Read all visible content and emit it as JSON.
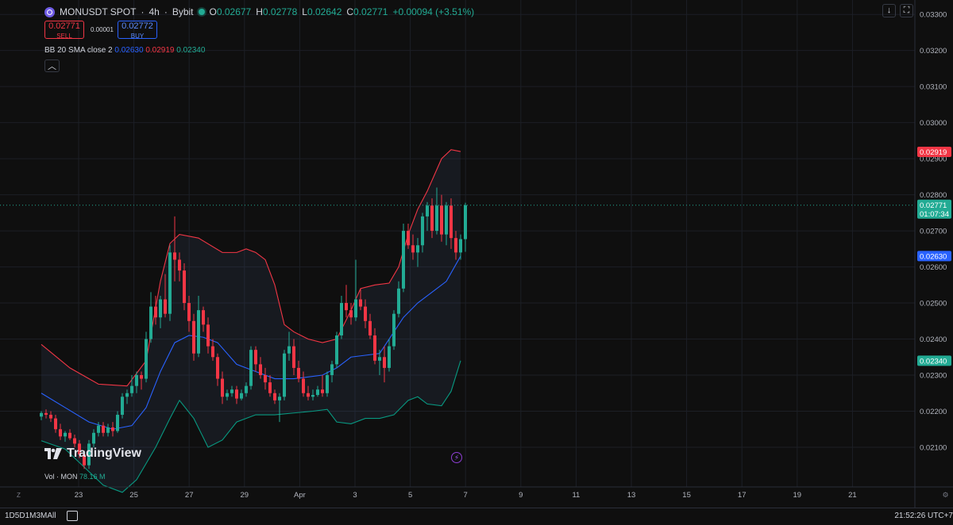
{
  "header": {
    "symbol": "MONUSDT SPOT",
    "timeframe": "4h",
    "exchange": "Bybit",
    "open_label": "O",
    "open": "0.02677",
    "high_label": "H",
    "high": "0.02778",
    "low_label": "L",
    "low": "0.02642",
    "close_label": "C",
    "close": "0.02771",
    "change": "+0.00094 (+3.51%)"
  },
  "trade": {
    "sell_price": "0.02771",
    "sell_label": "SELL",
    "spread": "0.00001",
    "buy_price": "0.02772",
    "buy_label": "BUY"
  },
  "indicator": {
    "name": "BB 20 SMA close 2",
    "basis": "0.02630",
    "upper": "0.02919",
    "lower": "0.02340"
  },
  "volume": {
    "label": "Vol · MON",
    "value": "78.16 M"
  },
  "branding": {
    "logo_text": "TradingView"
  },
  "bottom_bar": {
    "timeframes": "1D5D1M3MAll",
    "clock": "21:52:26 UTC+7",
    "zoom_glyph": "Z"
  },
  "colors": {
    "up": "#22ab94",
    "down": "#f23645",
    "basis": "#2962ff",
    "upper": "#f23645",
    "lower": "#089981"
  },
  "chart_data": {
    "type": "candlestick",
    "title": "",
    "xlabel": "",
    "ylabel": "",
    "ylim": [
      0.0199,
      0.0334
    ],
    "y_ticks": [
      "0.03300",
      "0.03200",
      "0.03100",
      "0.03000",
      "0.02900",
      "0.02800",
      "0.02700",
      "0.02600",
      "0.02500",
      "0.02400",
      "0.02300",
      "0.02200",
      "0.02100"
    ],
    "x_ticks": [
      "23",
      "25",
      "27",
      "29",
      "Apr",
      "3",
      "5",
      "7",
      "9",
      "11",
      "13",
      "15",
      "17",
      "19",
      "21"
    ],
    "grid": true,
    "price_labels": [
      {
        "value": 0.02919,
        "text": "0.02919",
        "color": "#f23645"
      },
      {
        "value": 0.02771,
        "text": "0.02771",
        "sub": "01:07:34",
        "color": "#22ab94"
      },
      {
        "value": 0.0263,
        "text": "0.02630",
        "color": "#2962ff"
      },
      {
        "value": 0.0234,
        "text": "0.02340",
        "color": "#22ab94"
      }
    ],
    "last_price": 0.02771,
    "candles": [
      [
        0.02185,
        0.022,
        0.02175,
        0.02195
      ],
      [
        0.02195,
        0.02205,
        0.0218,
        0.0219
      ],
      [
        0.0219,
        0.022,
        0.0217,
        0.0218
      ],
      [
        0.0218,
        0.0219,
        0.0214,
        0.0215
      ],
      [
        0.0215,
        0.02165,
        0.0212,
        0.0213
      ],
      [
        0.0213,
        0.02145,
        0.02115,
        0.0214
      ],
      [
        0.0214,
        0.0215,
        0.0212,
        0.02125
      ],
      [
        0.02125,
        0.02135,
        0.021,
        0.0211
      ],
      [
        0.0211,
        0.0212,
        0.0207,
        0.0208
      ],
      [
        0.0208,
        0.0209,
        0.0204,
        0.0205
      ],
      [
        0.0205,
        0.0212,
        0.0204,
        0.0211
      ],
      [
        0.0211,
        0.0215,
        0.021,
        0.0214
      ],
      [
        0.0214,
        0.0217,
        0.0213,
        0.0216
      ],
      [
        0.0216,
        0.0217,
        0.0213,
        0.0214
      ],
      [
        0.0214,
        0.02165,
        0.0213,
        0.02155
      ],
      [
        0.02155,
        0.0217,
        0.0213,
        0.02145
      ],
      [
        0.02145,
        0.022,
        0.0214,
        0.0219
      ],
      [
        0.0219,
        0.0225,
        0.0218,
        0.0224
      ],
      [
        0.0224,
        0.0226,
        0.0222,
        0.0225
      ],
      [
        0.0225,
        0.023,
        0.0224,
        0.0227
      ],
      [
        0.0227,
        0.0231,
        0.0225,
        0.023
      ],
      [
        0.023,
        0.0231,
        0.0226,
        0.0229
      ],
      [
        0.0229,
        0.0242,
        0.0228,
        0.024
      ],
      [
        0.024,
        0.0253,
        0.0239,
        0.0249
      ],
      [
        0.0249,
        0.0252,
        0.0244,
        0.0246
      ],
      [
        0.0246,
        0.0252,
        0.0243,
        0.0251
      ],
      [
        0.0251,
        0.0258,
        0.0246,
        0.0247
      ],
      [
        0.0247,
        0.0266,
        0.0245,
        0.0264
      ],
      [
        0.0264,
        0.0274,
        0.0256,
        0.0262
      ],
      [
        0.0262,
        0.0264,
        0.0256,
        0.0259
      ],
      [
        0.0259,
        0.0261,
        0.0248,
        0.025
      ],
      [
        0.025,
        0.0252,
        0.0242,
        0.0245
      ],
      [
        0.0245,
        0.0247,
        0.0234,
        0.0236
      ],
      [
        0.0236,
        0.0252,
        0.0235,
        0.0248
      ],
      [
        0.0248,
        0.0249,
        0.0242,
        0.0244
      ],
      [
        0.0244,
        0.0246,
        0.0236,
        0.0238
      ],
      [
        0.0238,
        0.024,
        0.0234,
        0.0235
      ],
      [
        0.0235,
        0.0236,
        0.0227,
        0.0229
      ],
      [
        0.0229,
        0.0231,
        0.0222,
        0.0224
      ],
      [
        0.0224,
        0.0226,
        0.0223,
        0.0225
      ],
      [
        0.0225,
        0.0227,
        0.0224,
        0.0226
      ],
      [
        0.0226,
        0.0227,
        0.0222,
        0.02235
      ],
      [
        0.02235,
        0.0226,
        0.0223,
        0.0225
      ],
      [
        0.0225,
        0.0228,
        0.0224,
        0.0227
      ],
      [
        0.0227,
        0.0238,
        0.0226,
        0.0237
      ],
      [
        0.0237,
        0.0238,
        0.0231,
        0.0233
      ],
      [
        0.0233,
        0.0235,
        0.0229,
        0.023
      ],
      [
        0.023,
        0.0232,
        0.0226,
        0.0228
      ],
      [
        0.0228,
        0.023,
        0.0224,
        0.0225
      ],
      [
        0.0225,
        0.0226,
        0.0222,
        0.0223
      ],
      [
        0.0223,
        0.0225,
        0.0217,
        0.0224
      ],
      [
        0.0224,
        0.0237,
        0.0223,
        0.0236
      ],
      [
        0.0236,
        0.0242,
        0.0234,
        0.0238
      ],
      [
        0.0238,
        0.024,
        0.023,
        0.0232
      ],
      [
        0.0232,
        0.0234,
        0.0228,
        0.0229
      ],
      [
        0.0229,
        0.0231,
        0.0224,
        0.0225
      ],
      [
        0.0225,
        0.0227,
        0.0223,
        0.0224
      ],
      [
        0.0224,
        0.0226,
        0.0223,
        0.02245
      ],
      [
        0.02245,
        0.0227,
        0.0224,
        0.0226
      ],
      [
        0.0226,
        0.023,
        0.0224,
        0.0225
      ],
      [
        0.0225,
        0.0231,
        0.0224,
        0.023
      ],
      [
        0.023,
        0.0234,
        0.0228,
        0.0233
      ],
      [
        0.0233,
        0.0242,
        0.0232,
        0.0241
      ],
      [
        0.0241,
        0.0252,
        0.024,
        0.025
      ],
      [
        0.025,
        0.0255,
        0.0246,
        0.0248
      ],
      [
        0.0248,
        0.025,
        0.0244,
        0.0246
      ],
      [
        0.0246,
        0.0262,
        0.0245,
        0.0251
      ],
      [
        0.0251,
        0.0254,
        0.0248,
        0.0249
      ],
      [
        0.0249,
        0.0251,
        0.0243,
        0.0245
      ],
      [
        0.0245,
        0.0247,
        0.024,
        0.0241
      ],
      [
        0.0241,
        0.0243,
        0.0233,
        0.0234
      ],
      [
        0.0234,
        0.0237,
        0.023,
        0.0235
      ],
      [
        0.0235,
        0.0238,
        0.0228,
        0.0232
      ],
      [
        0.0232,
        0.024,
        0.0231,
        0.0238
      ],
      [
        0.0238,
        0.0248,
        0.0237,
        0.0247
      ],
      [
        0.0247,
        0.0256,
        0.0246,
        0.0254
      ],
      [
        0.0254,
        0.0272,
        0.0253,
        0.027
      ],
      [
        0.027,
        0.0272,
        0.0265,
        0.0266
      ],
      [
        0.0266,
        0.0269,
        0.0262,
        0.0264
      ],
      [
        0.0264,
        0.0268,
        0.026,
        0.0266
      ],
      [
        0.0266,
        0.0275,
        0.0264,
        0.0274
      ],
      [
        0.0274,
        0.0278,
        0.027,
        0.0277
      ],
      [
        0.0277,
        0.0279,
        0.0268,
        0.027
      ],
      [
        0.027,
        0.0282,
        0.0269,
        0.0277
      ],
      [
        0.0277,
        0.028,
        0.0267,
        0.0269
      ],
      [
        0.0269,
        0.0278,
        0.0266,
        0.0277
      ],
      [
        0.0277,
        0.0279,
        0.0265,
        0.0268
      ],
      [
        0.0268,
        0.027,
        0.0262,
        0.0264
      ],
      [
        0.0264,
        0.0269,
        0.0262,
        0.02677
      ],
      [
        0.02677,
        0.02778,
        0.02642,
        0.02771
      ]
    ],
    "bb_upper": [
      [
        0,
        0.02385
      ],
      [
        6,
        0.0232
      ],
      [
        12,
        0.02275
      ],
      [
        18,
        0.0227
      ],
      [
        22,
        0.0234
      ],
      [
        25,
        0.0256
      ],
      [
        27,
        0.02665
      ],
      [
        29,
        0.0269
      ],
      [
        33,
        0.0268
      ],
      [
        38,
        0.0264
      ],
      [
        41,
        0.0264
      ],
      [
        43,
        0.0265
      ],
      [
        45,
        0.0264
      ],
      [
        47,
        0.0262
      ],
      [
        49,
        0.0255
      ],
      [
        51,
        0.0244
      ],
      [
        53,
        0.0242
      ],
      [
        56,
        0.024
      ],
      [
        59,
        0.0239
      ],
      [
        62,
        0.024
      ],
      [
        65,
        0.0248
      ],
      [
        67,
        0.0254
      ],
      [
        70,
        0.0255
      ],
      [
        73,
        0.02555
      ],
      [
        75,
        0.026
      ],
      [
        77,
        0.0269
      ],
      [
        79,
        0.0276
      ],
      [
        81,
        0.0281
      ],
      [
        84,
        0.029
      ],
      [
        86,
        0.02925
      ],
      [
        88,
        0.0292
      ]
    ],
    "bb_basis": [
      [
        0,
        0.0225
      ],
      [
        5,
        0.0221
      ],
      [
        10,
        0.0217
      ],
      [
        15,
        0.0215
      ],
      [
        19,
        0.0216
      ],
      [
        22,
        0.0221
      ],
      [
        25,
        0.0231
      ],
      [
        28,
        0.0239
      ],
      [
        31,
        0.0241
      ],
      [
        34,
        0.02405
      ],
      [
        37,
        0.0239
      ],
      [
        41,
        0.0233
      ],
      [
        45,
        0.0231
      ],
      [
        49,
        0.0229
      ],
      [
        53,
        0.0229
      ],
      [
        56,
        0.02295
      ],
      [
        59,
        0.023
      ],
      [
        62,
        0.0232
      ],
      [
        65,
        0.0235
      ],
      [
        68,
        0.02355
      ],
      [
        71,
        0.0236
      ],
      [
        73,
        0.024
      ],
      [
        76,
        0.0246
      ],
      [
        79,
        0.025
      ],
      [
        82,
        0.0253
      ],
      [
        85,
        0.0256
      ],
      [
        88,
        0.0263
      ]
    ],
    "bb_lower": [
      [
        0,
        0.02118
      ],
      [
        5,
        0.02095
      ],
      [
        9,
        0.02045
      ],
      [
        13,
        0.01995
      ],
      [
        17,
        0.01975
      ],
      [
        20,
        0.0201
      ],
      [
        24,
        0.021
      ],
      [
        27,
        0.0218
      ],
      [
        29,
        0.0223
      ],
      [
        32,
        0.0218
      ],
      [
        35,
        0.021
      ],
      [
        38,
        0.0212
      ],
      [
        41,
        0.0217
      ],
      [
        45,
        0.0219
      ],
      [
        49,
        0.0219
      ],
      [
        53,
        0.02195
      ],
      [
        57,
        0.022
      ],
      [
        60,
        0.02205
      ],
      [
        62,
        0.0217
      ],
      [
        65,
        0.02165
      ],
      [
        68,
        0.0218
      ],
      [
        71,
        0.0218
      ],
      [
        74,
        0.0219
      ],
      [
        77,
        0.0223
      ],
      [
        79,
        0.0224
      ],
      [
        81,
        0.0222
      ],
      [
        84,
        0.02215
      ],
      [
        86,
        0.02255
      ],
      [
        88,
        0.0234
      ]
    ]
  }
}
